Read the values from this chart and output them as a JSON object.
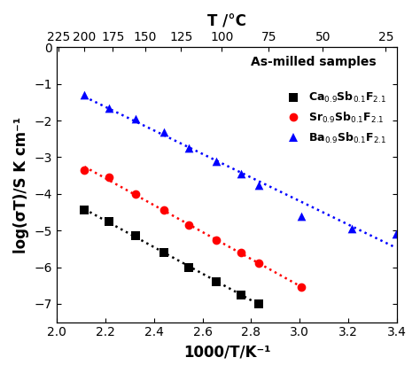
{
  "top_axis_label": "T /°C",
  "xlabel": "1000/T/K⁻¹",
  "ylabel": "log(σT)/S K cm⁻¹",
  "xlim": [
    2.0,
    3.4
  ],
  "ylim": [
    -7.5,
    0
  ],
  "yticks": [
    0,
    -1,
    -2,
    -3,
    -4,
    -5,
    -6,
    -7
  ],
  "xticks_bottom": [
    2.0,
    2.2,
    2.4,
    2.6,
    2.8,
    3.0,
    3.2,
    3.4
  ],
  "top_tick_temps_C": [
    225,
    200,
    175,
    150,
    125,
    100,
    75,
    50,
    25
  ],
  "annotation": "As-milled samples",
  "legend_labels": [
    "Ca$_{0.9}$Sb$_{0.1}$F$_{2.1}$",
    "Sr$_{0.9}$Sb$_{0.1}$F$_{2.1}$",
    "Ba$_{0.9}$Sb$_{0.1}$F$_{2.1}$"
  ],
  "legend_colors": [
    "black",
    "red",
    "blue"
  ],
  "legend_markers": [
    "s",
    "o",
    "^"
  ],
  "ca_x": [
    2.115,
    2.215,
    2.325,
    2.44,
    2.545,
    2.655,
    2.76,
    2.83
  ],
  "ca_y": [
    -4.45,
    -4.75,
    -5.15,
    -5.6,
    -6.0,
    -6.4,
    -6.75,
    -7.0
  ],
  "sr_x": [
    2.115,
    2.215,
    2.325,
    2.44,
    2.545,
    2.655,
    2.76,
    2.83,
    3.005
  ],
  "sr_y": [
    -3.35,
    -3.55,
    -4.0,
    -4.45,
    -4.85,
    -5.25,
    -5.6,
    -5.9,
    -6.55
  ],
  "ba_x": [
    2.115,
    2.215,
    2.325,
    2.44,
    2.545,
    2.655,
    2.76,
    2.83,
    3.005,
    3.215,
    3.395
  ],
  "ba_y": [
    -1.3,
    -1.65,
    -1.95,
    -2.3,
    -2.75,
    -3.1,
    -3.45,
    -3.75,
    -4.6,
    -4.95,
    -5.1
  ],
  "dot_color_ca": "black",
  "dot_color_sr": "red",
  "dot_color_ba": "blue",
  "marker_size": 7,
  "bg_color": "white",
  "tick_labelsize": 10,
  "axis_labelsize": 12
}
